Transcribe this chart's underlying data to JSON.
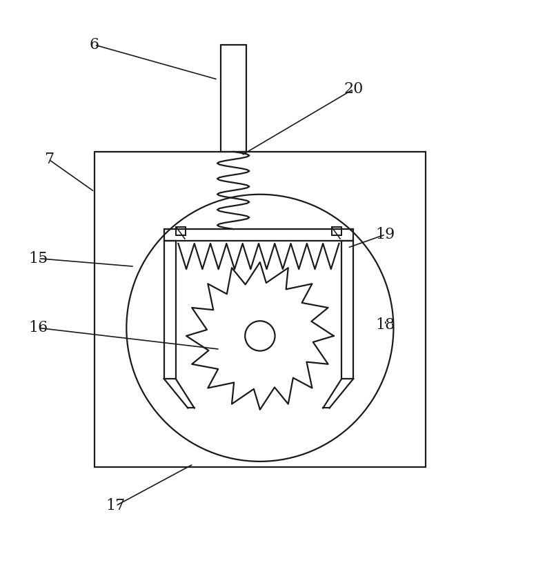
{
  "bg_color": "#ffffff",
  "line_color": "#1a1a1a",
  "lw": 1.6,
  "fig_width": 7.77,
  "fig_height": 8.19
}
